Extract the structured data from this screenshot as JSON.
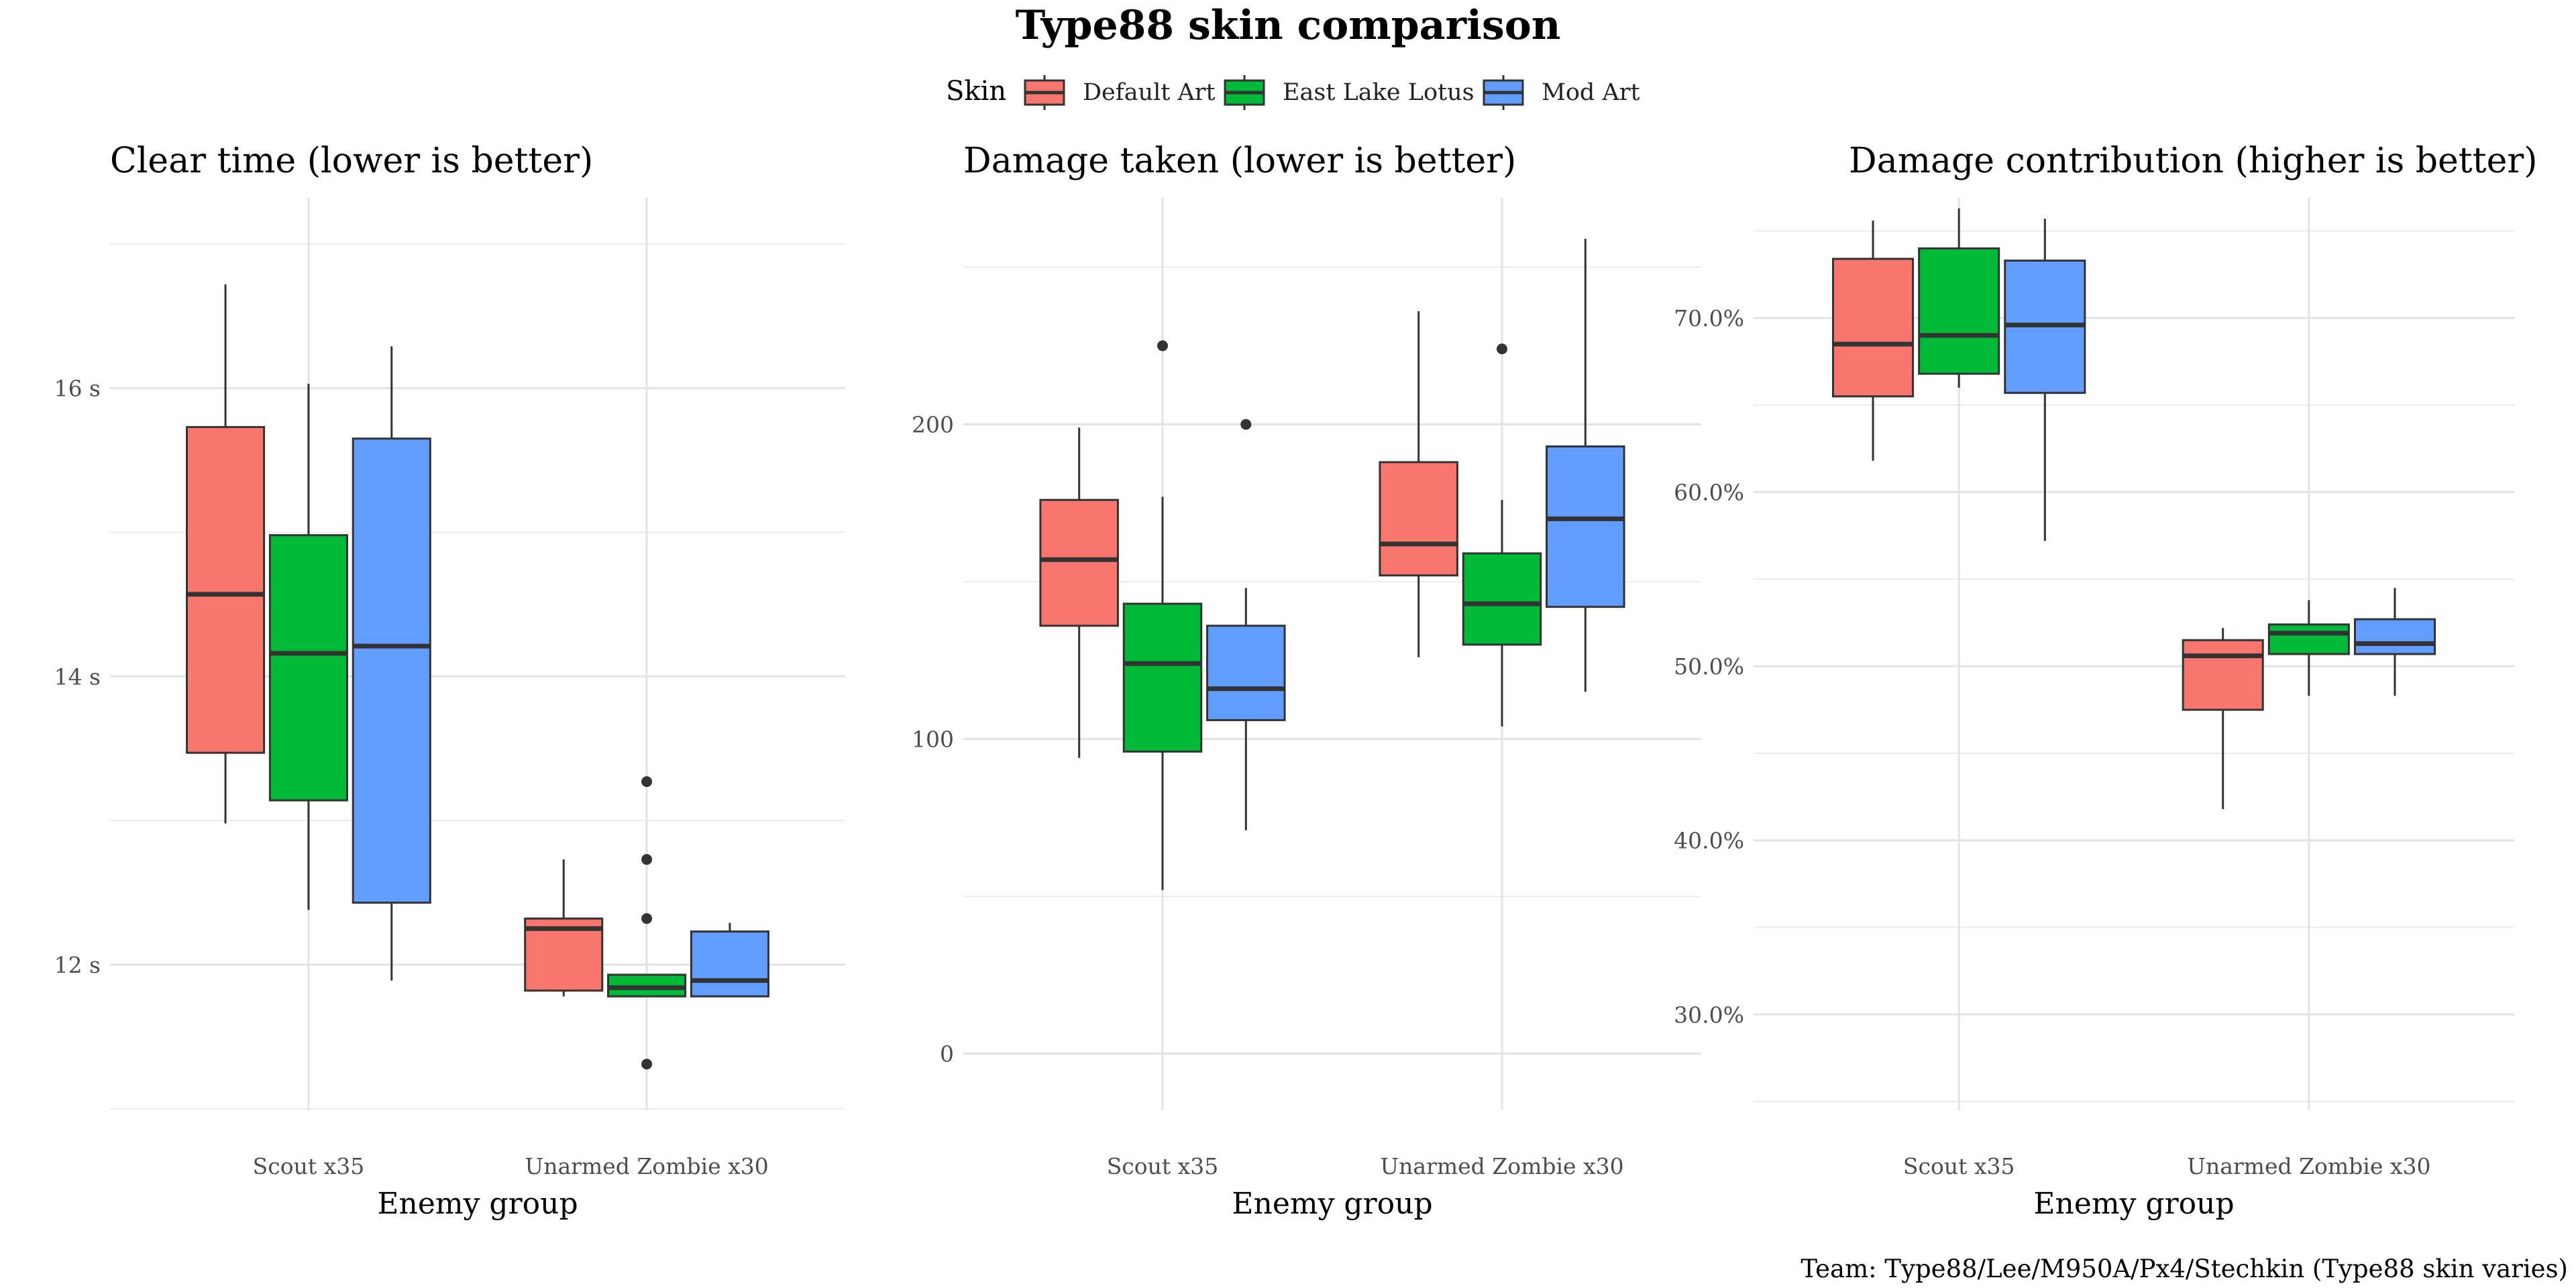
{
  "title": "Type88 skin comparison",
  "caption": "Team: Type88/Lee/M950A/Px4/Stechkin (Type88 skin varies)",
  "legend": {
    "title": "Skin",
    "position": "top",
    "entries": [
      {
        "label": "Default Art",
        "color": "#F8766D"
      },
      {
        "label": "East Lake Lotus",
        "color": "#00BA38"
      },
      {
        "label": "Mod Art",
        "color": "#619CFF"
      }
    ]
  },
  "chart_data": [
    {
      "type": "boxplot",
      "title": "Clear time (lower is better)",
      "xlabel": "Enemy group",
      "ylabel": "",
      "categories": [
        "Scout x35",
        "Unarmed Zombie x30"
      ],
      "ylim": [
        10.99,
        17.32
      ],
      "yticks": [
        12,
        14,
        16
      ],
      "ytick_labels": [
        "12 s",
        "14 s",
        "16 s"
      ],
      "grid": true,
      "series": [
        {
          "name": "Default Art",
          "boxes": [
            {
              "low": 12.98,
              "q1": 13.47,
              "median": 14.57,
              "q3": 15.73,
              "high": 16.72,
              "outliers": []
            },
            {
              "low": 11.78,
              "q1": 11.82,
              "median": 12.25,
              "q3": 12.32,
              "high": 12.73,
              "outliers": []
            }
          ]
        },
        {
          "name": "East Lake Lotus",
          "boxes": [
            {
              "low": 12.38,
              "q1": 13.14,
              "median": 14.16,
              "q3": 14.98,
              "high": 16.03,
              "outliers": []
            },
            {
              "low": 11.78,
              "q1": 11.78,
              "median": 11.84,
              "q3": 11.93,
              "high": 11.93,
              "outliers": [
                13.27,
                12.73,
                12.32,
                11.31
              ]
            }
          ]
        },
        {
          "name": "Mod Art",
          "boxes": [
            {
              "low": 11.89,
              "q1": 12.43,
              "median": 14.21,
              "q3": 15.65,
              "high": 16.29,
              "outliers": []
            },
            {
              "low": 11.78,
              "q1": 11.78,
              "median": 11.89,
              "q3": 12.23,
              "high": 12.29,
              "outliers": []
            }
          ]
        }
      ]
    },
    {
      "type": "boxplot",
      "title": "Damage taken (lower is better)",
      "xlabel": "Enemy group",
      "ylabel": "",
      "categories": [
        "Scout x35",
        "Unarmed Zombie x30"
      ],
      "ylim": [
        -18,
        272
      ],
      "yticks": [
        0,
        100,
        200
      ],
      "ytick_labels": [
        "0",
        "100",
        "200"
      ],
      "grid": true,
      "series": [
        {
          "name": "Default Art",
          "boxes": [
            {
              "low": 94,
              "q1": 136,
              "median": 157,
              "q3": 176,
              "high": 199,
              "outliers": []
            },
            {
              "low": 126,
              "q1": 152,
              "median": 162,
              "q3": 188,
              "high": 236,
              "outliers": []
            }
          ]
        },
        {
          "name": "East Lake Lotus",
          "boxes": [
            {
              "low": 52,
              "q1": 96,
              "median": 124,
              "q3": 143,
              "high": 177,
              "outliers": [
                225
              ]
            },
            {
              "low": 104,
              "q1": 130,
              "median": 143,
              "q3": 159,
              "high": 176,
              "outliers": [
                224
              ]
            }
          ]
        },
        {
          "name": "Mod Art",
          "boxes": [
            {
              "low": 71,
              "q1": 106,
              "median": 116,
              "q3": 136,
              "high": 148,
              "outliers": [
                200
              ]
            },
            {
              "low": 115,
              "q1": 142,
              "median": 170,
              "q3": 193,
              "high": 259,
              "outliers": []
            }
          ]
        }
      ]
    },
    {
      "type": "boxplot",
      "title": "Damage contribution (higher is better)",
      "xlabel": "Enemy group",
      "ylabel": "",
      "categories": [
        "Scout x35",
        "Unarmed Zombie x30"
      ],
      "ylim": [
        24.5,
        76.9
      ],
      "yticks": [
        30,
        40,
        50,
        60,
        70
      ],
      "ytick_labels": [
        "30.0%",
        "40.0%",
        "50.0%",
        "60.0%",
        "70.0%"
      ],
      "grid": true,
      "series": [
        {
          "name": "Default Art",
          "boxes": [
            {
              "low": 61.8,
              "q1": 65.5,
              "median": 68.5,
              "q3": 73.4,
              "high": 75.6,
              "outliers": []
            },
            {
              "low": 41.8,
              "q1": 47.5,
              "median": 50.6,
              "q3": 51.5,
              "high": 52.2,
              "outliers": []
            }
          ]
        },
        {
          "name": "East Lake Lotus",
          "boxes": [
            {
              "low": 66.0,
              "q1": 66.8,
              "median": 69.0,
              "q3": 74.0,
              "high": 76.3,
              "outliers": []
            },
            {
              "low": 48.3,
              "q1": 50.7,
              "median": 51.9,
              "q3": 52.4,
              "high": 53.8,
              "outliers": []
            }
          ]
        },
        {
          "name": "Mod Art",
          "boxes": [
            {
              "low": 57.2,
              "q1": 65.7,
              "median": 69.6,
              "q3": 73.3,
              "high": 75.7,
              "outliers": []
            },
            {
              "low": 48.3,
              "q1": 50.7,
              "median": 51.3,
              "q3": 52.7,
              "high": 54.5,
              "outliers": []
            }
          ]
        }
      ]
    }
  ]
}
